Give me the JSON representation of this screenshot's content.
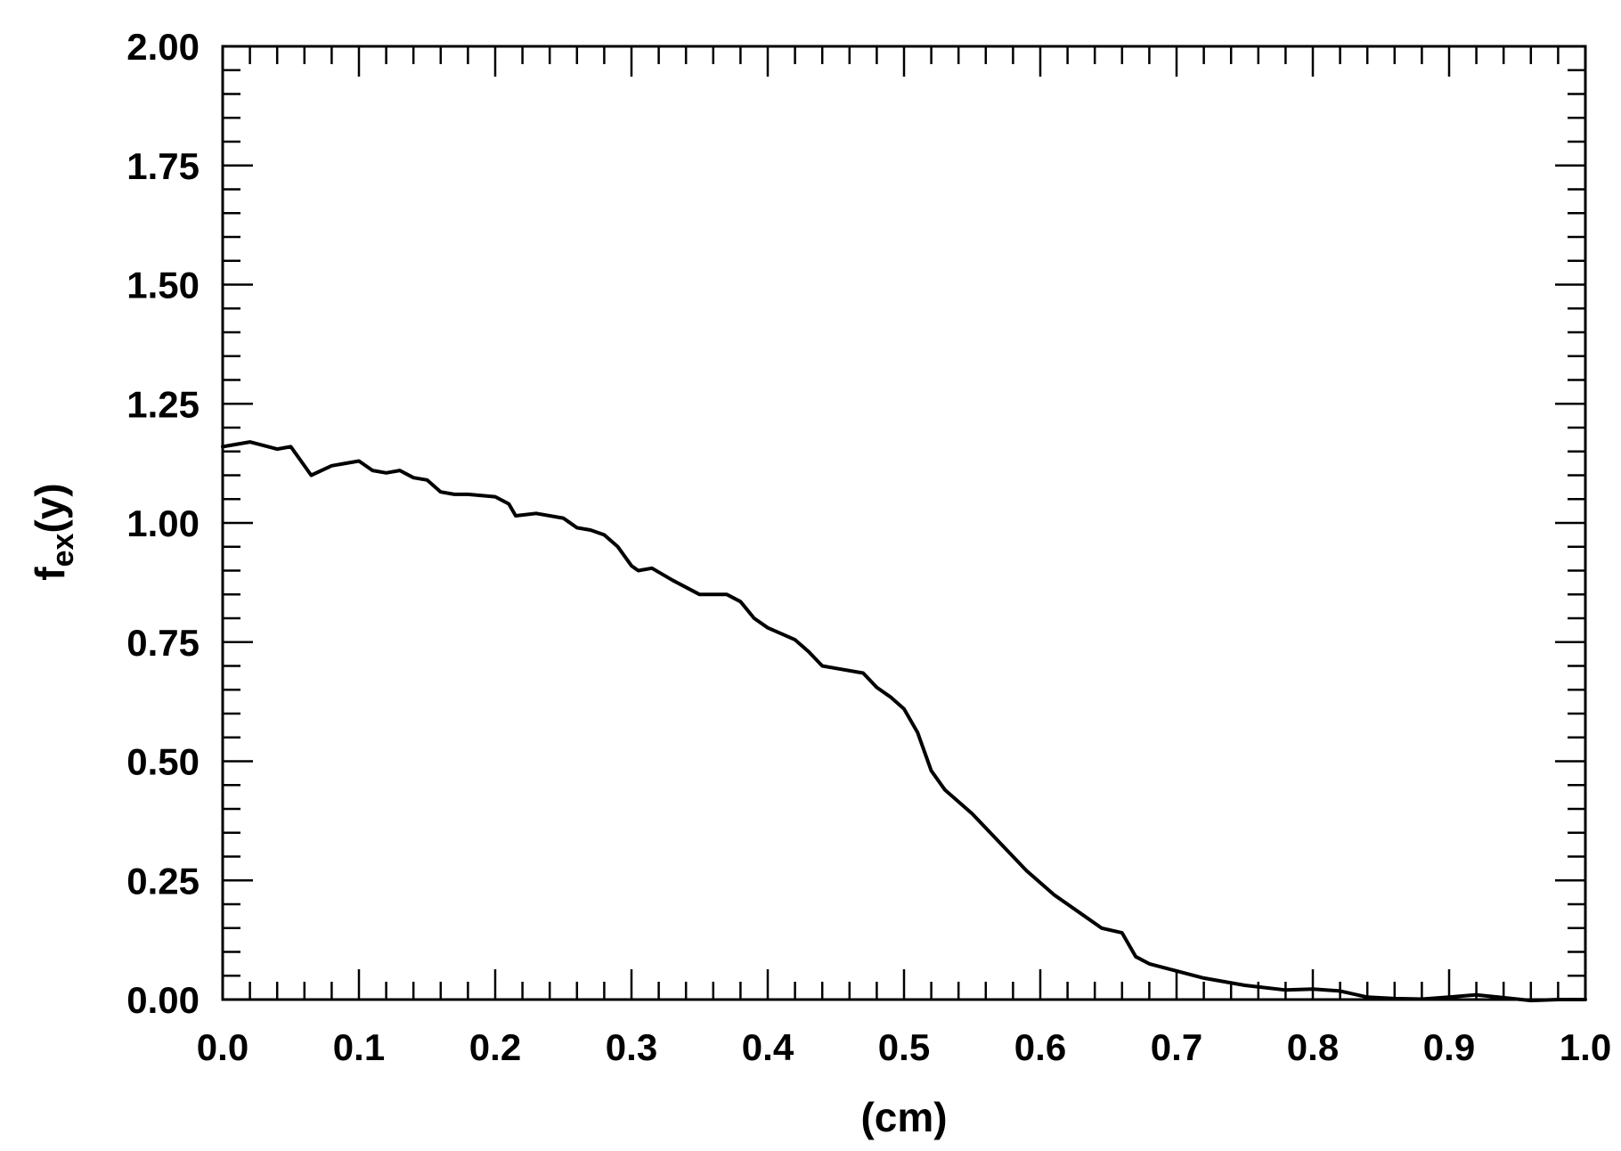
{
  "chart_data": {
    "type": "line",
    "title": "",
    "xlabel": "(cm)",
    "ylabel": {
      "base": "f",
      "subscript": "ex",
      "suffix": "(y)"
    },
    "xlim": [
      0.0,
      1.0
    ],
    "ylim": [
      0.0,
      2.0
    ],
    "xticks": [
      "0.0",
      "0.1",
      "0.2",
      "0.3",
      "0.4",
      "0.5",
      "0.6",
      "0.7",
      "0.8",
      "0.9",
      "1.0"
    ],
    "yticks": [
      "0.00",
      "0.25",
      "0.50",
      "0.75",
      "1.00",
      "1.25",
      "1.50",
      "1.75",
      "2.00"
    ],
    "grid": false,
    "series": [
      {
        "color": "#000000",
        "x": [
          0.0,
          0.02,
          0.04,
          0.05,
          0.065,
          0.08,
          0.1,
          0.11,
          0.12,
          0.13,
          0.14,
          0.15,
          0.16,
          0.17,
          0.18,
          0.2,
          0.21,
          0.215,
          0.23,
          0.25,
          0.26,
          0.27,
          0.28,
          0.29,
          0.3,
          0.305,
          0.315,
          0.33,
          0.35,
          0.37,
          0.38,
          0.39,
          0.4,
          0.42,
          0.43,
          0.44,
          0.45,
          0.47,
          0.48,
          0.49,
          0.5,
          0.51,
          0.52,
          0.53,
          0.55,
          0.57,
          0.59,
          0.61,
          0.63,
          0.645,
          0.66,
          0.67,
          0.68,
          0.7,
          0.72,
          0.75,
          0.78,
          0.8,
          0.82,
          0.84,
          0.86,
          0.88,
          0.9,
          0.92,
          0.94,
          0.96,
          0.98,
          1.0
        ],
        "y": [
          1.16,
          1.17,
          1.155,
          1.16,
          1.1,
          1.12,
          1.13,
          1.11,
          1.105,
          1.11,
          1.095,
          1.09,
          1.065,
          1.06,
          1.06,
          1.055,
          1.04,
          1.015,
          1.02,
          1.01,
          0.99,
          0.985,
          0.975,
          0.95,
          0.91,
          0.9,
          0.905,
          0.88,
          0.85,
          0.85,
          0.835,
          0.8,
          0.78,
          0.755,
          0.73,
          0.7,
          0.695,
          0.685,
          0.655,
          0.635,
          0.61,
          0.56,
          0.48,
          0.44,
          0.39,
          0.33,
          0.27,
          0.22,
          0.18,
          0.15,
          0.14,
          0.09,
          0.075,
          0.06,
          0.045,
          0.03,
          0.02,
          0.022,
          0.018,
          0.005,
          0.002,
          0.001,
          0.005,
          0.01,
          0.004,
          -0.002,
          0.0,
          0.0
        ]
      }
    ]
  }
}
